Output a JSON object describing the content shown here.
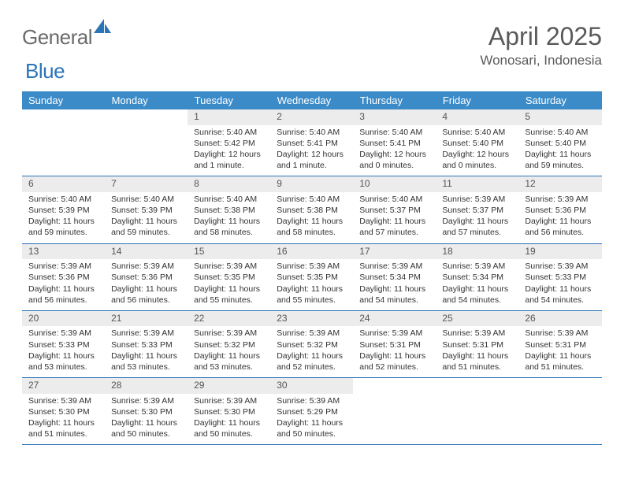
{
  "logo": {
    "general": "General",
    "blue": "Blue"
  },
  "title": "April 2025",
  "location": "Wonosari, Indonesia",
  "colors": {
    "header_bg": "#3b8bc9",
    "header_text": "#ffffff",
    "daynum_bg": "#ececec",
    "rule": "#2b74b8",
    "logo_gray": "#6b6b6b",
    "logo_blue": "#2b74b8",
    "text": "#333333",
    "title_text": "#5a5a5a"
  },
  "weekdays": [
    "Sunday",
    "Monday",
    "Tuesday",
    "Wednesday",
    "Thursday",
    "Friday",
    "Saturday"
  ],
  "weeks": [
    [
      null,
      null,
      {
        "n": "1",
        "sr": "5:40 AM",
        "ss": "5:42 PM",
        "dl": "12 hours and 1 minute."
      },
      {
        "n": "2",
        "sr": "5:40 AM",
        "ss": "5:41 PM",
        "dl": "12 hours and 1 minute."
      },
      {
        "n": "3",
        "sr": "5:40 AM",
        "ss": "5:41 PM",
        "dl": "12 hours and 0 minutes."
      },
      {
        "n": "4",
        "sr": "5:40 AM",
        "ss": "5:40 PM",
        "dl": "12 hours and 0 minutes."
      },
      {
        "n": "5",
        "sr": "5:40 AM",
        "ss": "5:40 PM",
        "dl": "11 hours and 59 minutes."
      }
    ],
    [
      {
        "n": "6",
        "sr": "5:40 AM",
        "ss": "5:39 PM",
        "dl": "11 hours and 59 minutes."
      },
      {
        "n": "7",
        "sr": "5:40 AM",
        "ss": "5:39 PM",
        "dl": "11 hours and 59 minutes."
      },
      {
        "n": "8",
        "sr": "5:40 AM",
        "ss": "5:38 PM",
        "dl": "11 hours and 58 minutes."
      },
      {
        "n": "9",
        "sr": "5:40 AM",
        "ss": "5:38 PM",
        "dl": "11 hours and 58 minutes."
      },
      {
        "n": "10",
        "sr": "5:40 AM",
        "ss": "5:37 PM",
        "dl": "11 hours and 57 minutes."
      },
      {
        "n": "11",
        "sr": "5:39 AM",
        "ss": "5:37 PM",
        "dl": "11 hours and 57 minutes."
      },
      {
        "n": "12",
        "sr": "5:39 AM",
        "ss": "5:36 PM",
        "dl": "11 hours and 56 minutes."
      }
    ],
    [
      {
        "n": "13",
        "sr": "5:39 AM",
        "ss": "5:36 PM",
        "dl": "11 hours and 56 minutes."
      },
      {
        "n": "14",
        "sr": "5:39 AM",
        "ss": "5:36 PM",
        "dl": "11 hours and 56 minutes."
      },
      {
        "n": "15",
        "sr": "5:39 AM",
        "ss": "5:35 PM",
        "dl": "11 hours and 55 minutes."
      },
      {
        "n": "16",
        "sr": "5:39 AM",
        "ss": "5:35 PM",
        "dl": "11 hours and 55 minutes."
      },
      {
        "n": "17",
        "sr": "5:39 AM",
        "ss": "5:34 PM",
        "dl": "11 hours and 54 minutes."
      },
      {
        "n": "18",
        "sr": "5:39 AM",
        "ss": "5:34 PM",
        "dl": "11 hours and 54 minutes."
      },
      {
        "n": "19",
        "sr": "5:39 AM",
        "ss": "5:33 PM",
        "dl": "11 hours and 54 minutes."
      }
    ],
    [
      {
        "n": "20",
        "sr": "5:39 AM",
        "ss": "5:33 PM",
        "dl": "11 hours and 53 minutes."
      },
      {
        "n": "21",
        "sr": "5:39 AM",
        "ss": "5:33 PM",
        "dl": "11 hours and 53 minutes."
      },
      {
        "n": "22",
        "sr": "5:39 AM",
        "ss": "5:32 PM",
        "dl": "11 hours and 53 minutes."
      },
      {
        "n": "23",
        "sr": "5:39 AM",
        "ss": "5:32 PM",
        "dl": "11 hours and 52 minutes."
      },
      {
        "n": "24",
        "sr": "5:39 AM",
        "ss": "5:31 PM",
        "dl": "11 hours and 52 minutes."
      },
      {
        "n": "25",
        "sr": "5:39 AM",
        "ss": "5:31 PM",
        "dl": "11 hours and 51 minutes."
      },
      {
        "n": "26",
        "sr": "5:39 AM",
        "ss": "5:31 PM",
        "dl": "11 hours and 51 minutes."
      }
    ],
    [
      {
        "n": "27",
        "sr": "5:39 AM",
        "ss": "5:30 PM",
        "dl": "11 hours and 51 minutes."
      },
      {
        "n": "28",
        "sr": "5:39 AM",
        "ss": "5:30 PM",
        "dl": "11 hours and 50 minutes."
      },
      {
        "n": "29",
        "sr": "5:39 AM",
        "ss": "5:30 PM",
        "dl": "11 hours and 50 minutes."
      },
      {
        "n": "30",
        "sr": "5:39 AM",
        "ss": "5:29 PM",
        "dl": "11 hours and 50 minutes."
      },
      null,
      null,
      null
    ]
  ],
  "labels": {
    "sunrise": "Sunrise:",
    "sunset": "Sunset:",
    "daylight": "Daylight:"
  }
}
